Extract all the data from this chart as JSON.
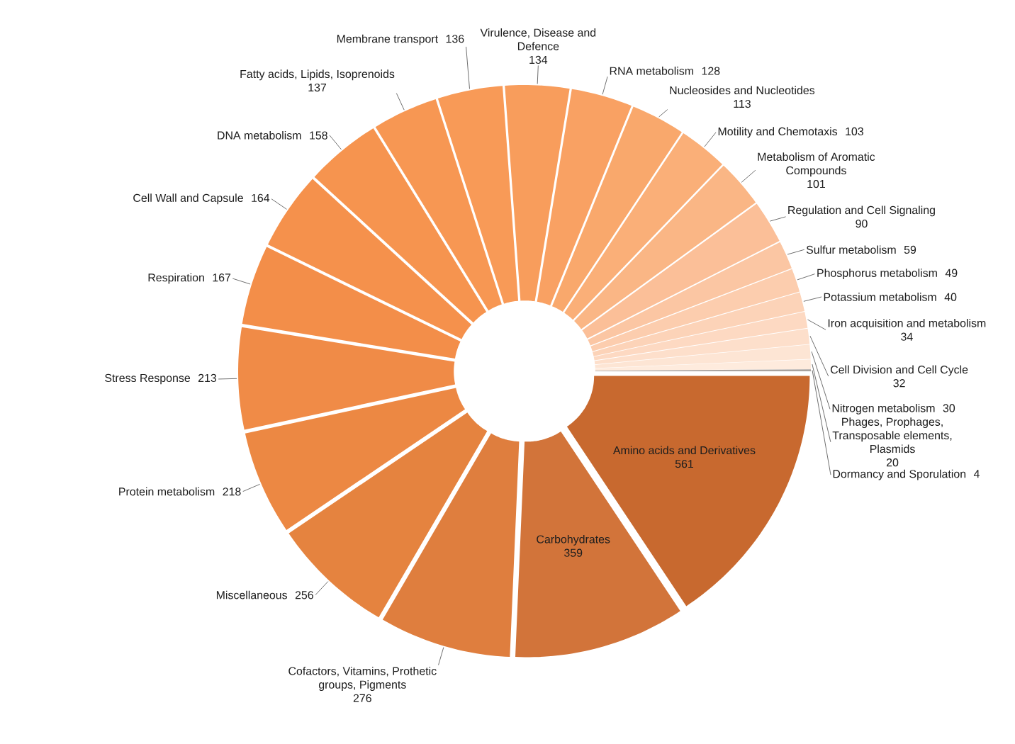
{
  "chart_data": {
    "type": "donut",
    "categories": [
      "Amino acids and Derivatives",
      "Carbohydrates",
      "Cofactors, Vitamins, Prothetic groups, Pigments",
      "Miscellaneous",
      "Protein metabolism",
      "Stress Response",
      "Respiration",
      "Cell Wall and Capsule",
      "DNA metabolism",
      "Fatty acids, Lipids, Isoprenoids",
      "Membrane transport",
      "Virulence, Disease and Defence",
      "RNA metabolism",
      "Nucleosides and Nucleotides",
      "Motility and Chemotaxis",
      "Metabolism of Aromatic Compounds",
      "Regulation and Cell Signaling",
      "Sulfur metabolism",
      "Phosphorus metabolism",
      "Potassium metabolism",
      "Iron acquisition and metabolism",
      "Cell Division and Cell Cycle",
      "Nitrogen metabolism",
      "Phages, Prophages, Transposable elements, Plasmids",
      "Dormancy and Sporulation"
    ],
    "values": [
      561,
      359,
      276,
      256,
      218,
      213,
      167,
      164,
      158,
      137,
      136,
      134,
      128,
      113,
      103,
      101,
      90,
      59,
      49,
      40,
      34,
      32,
      30,
      20,
      4
    ],
    "colors": [
      "#c8692f",
      "#d2743a",
      "#df7e3e",
      "#e5833f",
      "#ec8843",
      "#f08b47",
      "#f38e49",
      "#f5914c",
      "#f6944f",
      "#f79753",
      "#f89a57",
      "#f89d5c",
      "#f9a163",
      "#f9a86c",
      "#faaf78",
      "#fab685",
      "#fbbf98",
      "#fbc6a3",
      "#fccdae",
      "#fcd3b8",
      "#fdd9c2",
      "#fddfcb",
      "#fde5d4",
      "#feebdd",
      "#a8a29e"
    ],
    "data_labels": true
  }
}
